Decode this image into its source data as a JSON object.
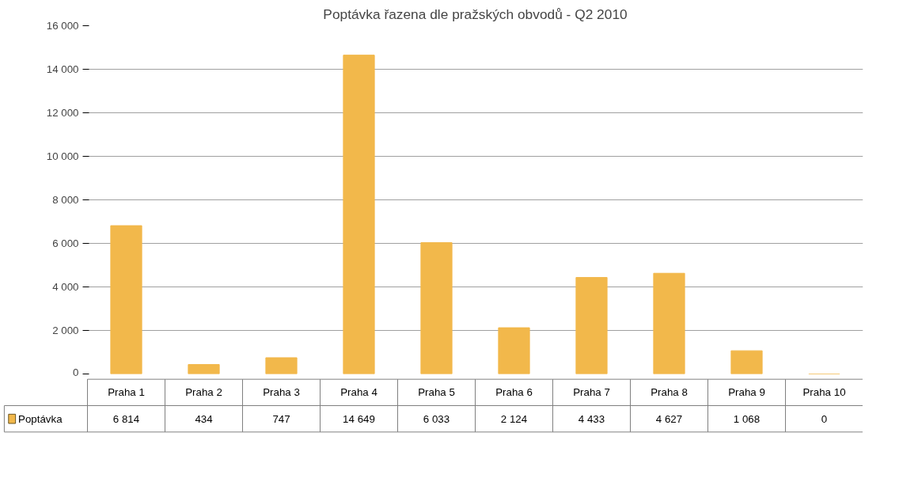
{
  "chart_data": {
    "type": "bar",
    "title": "Poptávka řazena dle pražských obvodů - Q2 2010",
    "categories": [
      "Praha 1",
      "Praha 2",
      "Praha 3",
      "Praha 4",
      "Praha 5",
      "Praha 6",
      "Praha 7",
      "Praha 8",
      "Praha 9",
      "Praha 10"
    ],
    "series": [
      {
        "name": "Poptávka",
        "color": "#f2b84b",
        "values": [
          6814,
          434,
          747,
          14649,
          6033,
          2124,
          4433,
          4627,
          1068,
          0
        ],
        "value_labels": [
          "6 814",
          "434",
          "747",
          "14 649",
          "6 033",
          "2 124",
          "4 433",
          "4 627",
          "1 068",
          "0"
        ]
      }
    ],
    "ylim": [
      0,
      16000
    ],
    "yticks": [
      0,
      {
        "value": 2000,
        "label": "2 000"
      },
      {
        "value": 4000,
        "label": "4 000"
      },
      {
        "value": 6000,
        "label": "6 000"
      },
      {
        "value": 8000,
        "label": "8 000"
      },
      {
        "value": 10000,
        "label": "10 000"
      },
      {
        "value": 12000,
        "label": "12 000"
      },
      {
        "value": 14000,
        "label": "14 000"
      },
      {
        "value": 16000,
        "label": "16 000"
      }
    ],
    "grid": "y",
    "legend": "bottom",
    "data_labels": true
  }
}
